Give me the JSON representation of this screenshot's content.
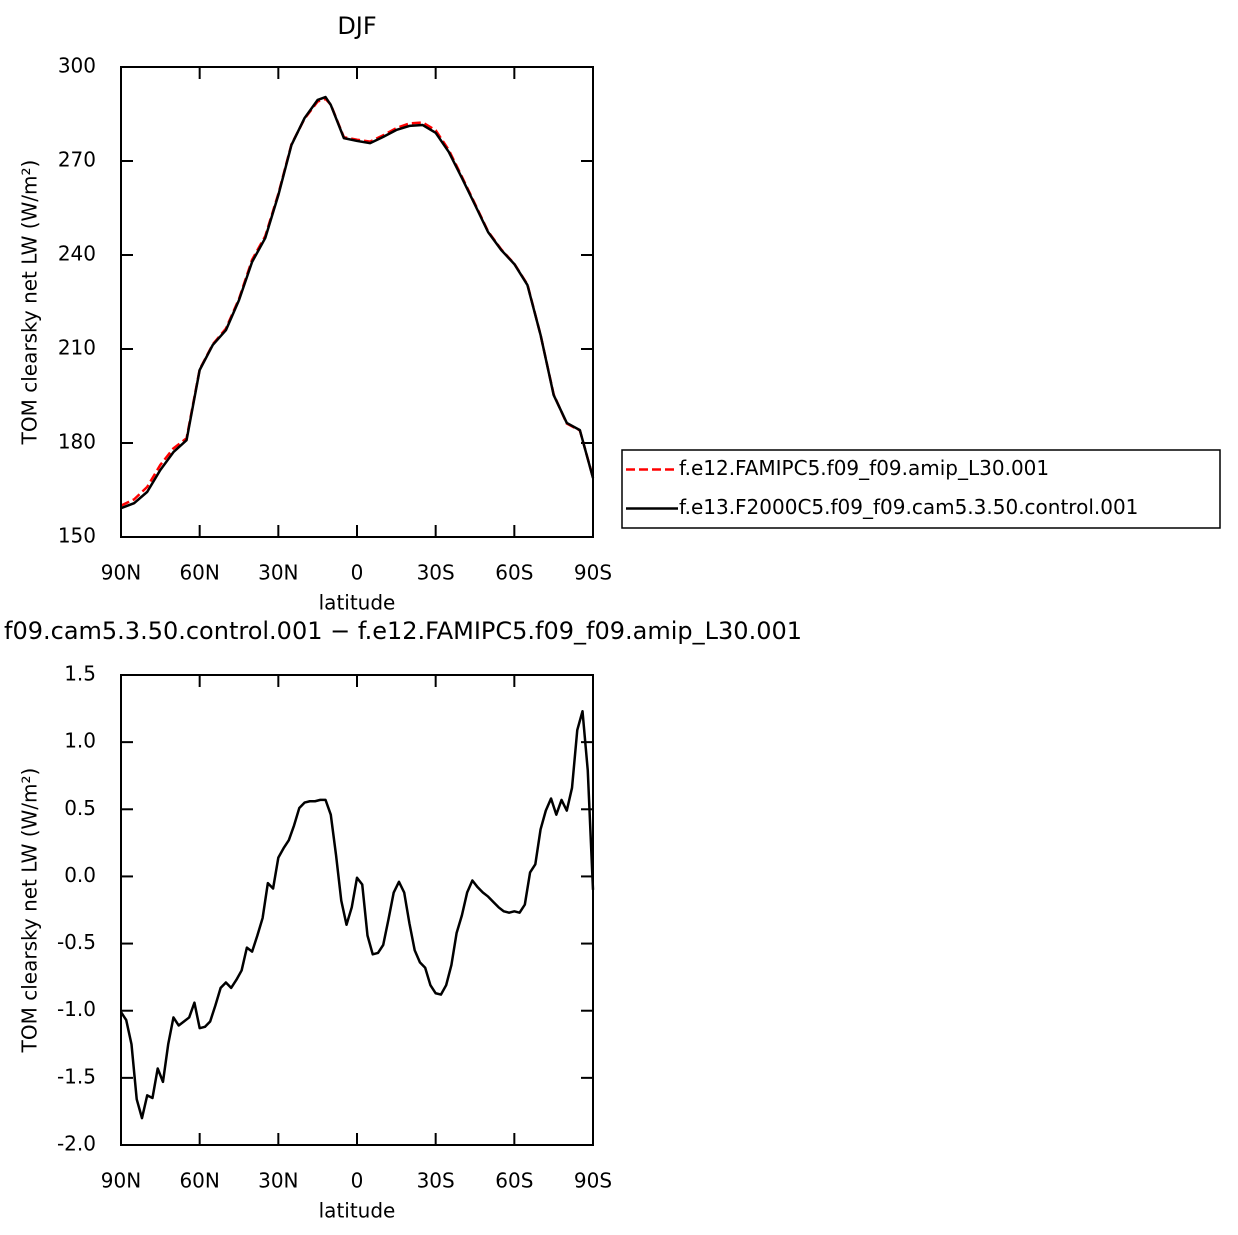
{
  "chart_data": [
    {
      "type": "line",
      "title": "DJF",
      "x_label": "latitude",
      "y_label": "TOM clearsky net LW (W/m²)",
      "x": [
        90,
        85,
        80,
        75,
        70,
        65,
        60,
        55,
        50,
        45,
        40,
        35,
        30,
        25,
        20,
        15,
        12,
        10,
        5,
        0,
        -5,
        -10,
        -15,
        -20,
        -25,
        -30,
        -35,
        -40,
        -45,
        -50,
        -55,
        -60,
        -65,
        -70,
        -75,
        -80,
        -85,
        -90
      ],
      "series": [
        {
          "name": "f.e12.FAMIPC5.f09_f09.amip_L30.001",
          "color": "#ff0000",
          "style": "dashed",
          "values": [
            160,
            162,
            166,
            173,
            178.3,
            181.5,
            203.5,
            211.5,
            216.5,
            226,
            238.5,
            246,
            259.5,
            275.3,
            283.5,
            289,
            289.8,
            288,
            277.6,
            276.8,
            276.2,
            278.2,
            280.5,
            282,
            282.3,
            279.8,
            273.5,
            265,
            256.3,
            247.5,
            241.8,
            237.2,
            230.6,
            214.5,
            195.5,
            186.2,
            184,
            169
          ]
        },
        {
          "name": "f.e13.F2000C5.f09_f09.cam5.3.50.control.001",
          "color": "#000000",
          "style": "solid",
          "values": [
            159.2,
            160.8,
            164.4,
            171.4,
            177.1,
            180.9,
            203.3,
            211.3,
            216,
            225.6,
            237.8,
            245.4,
            259.1,
            275.1,
            283.7,
            289.5,
            290.4,
            287.9,
            277.3,
            276.4,
            275.7,
            277.7,
            279.9,
            281.2,
            281.5,
            279,
            272.9,
            264.6,
            256,
            247.3,
            241.6,
            237.1,
            230.4,
            214.5,
            195.3,
            186.4,
            184.1,
            168.8
          ]
        }
      ],
      "xlim": [
        90,
        -90
      ],
      "xticks": [
        {
          "value": 90,
          "label": "90N"
        },
        {
          "value": 60,
          "label": "60N"
        },
        {
          "value": 30,
          "label": "30N"
        },
        0,
        {
          "value": -30,
          "label": "30S"
        },
        {
          "value": -60,
          "label": "60S"
        },
        {
          "value": -90,
          "label": "90S"
        }
      ],
      "ylim": [
        150,
        300
      ],
      "yticks": [
        150,
        180,
        210,
        240,
        270,
        300
      ],
      "legend": "right"
    },
    {
      "type": "line",
      "title": "f09.cam5.3.50.control.001 − f.e12.FAMIPC5.f09_f09.amip_L30.001",
      "x_label": "latitude",
      "y_label": "TOM clearsky net LW (W/m²)",
      "x": [
        90,
        88,
        86,
        84,
        82,
        80,
        78,
        76,
        74,
        72,
        70,
        68,
        66,
        64,
        62,
        60,
        58,
        56,
        54,
        52,
        50,
        48,
        46,
        44,
        42,
        40,
        38,
        36,
        34,
        32,
        30,
        28,
        26,
        24,
        22,
        20,
        18,
        16,
        14,
        12,
        10,
        8,
        6,
        4,
        2,
        0,
        -2,
        -4,
        -6,
        -8,
        -10,
        -12,
        -14,
        -16,
        -18,
        -20,
        -22,
        -24,
        -26,
        -28,
        -30,
        -32,
        -34,
        -36,
        -38,
        -40,
        -42,
        -44,
        -46,
        -48,
        -50,
        -52,
        -54,
        -56,
        -58,
        -60,
        -62,
        -64,
        -66,
        -68,
        -70,
        -72,
        -74,
        -76,
        -78,
        -80,
        -82,
        -84,
        -86,
        -88,
        -90
      ],
      "series": [
        {
          "color": "#000000",
          "style": "solid",
          "values": [
            -1.01,
            -1.07,
            -1.25,
            -1.66,
            -1.8,
            -1.63,
            -1.65,
            -1.43,
            -1.53,
            -1.25,
            -1.05,
            -1.11,
            -1.08,
            -1.05,
            -0.94,
            -1.13,
            -1.12,
            -1.08,
            -0.96,
            -0.83,
            -0.79,
            -0.83,
            -0.77,
            -0.7,
            -0.53,
            -0.56,
            -0.44,
            -0.31,
            -0.05,
            -0.09,
            0.14,
            0.21,
            0.27,
            0.38,
            0.51,
            0.55,
            0.56,
            0.56,
            0.57,
            0.57,
            0.46,
            0.16,
            -0.18,
            -0.36,
            -0.23,
            -0.01,
            -0.06,
            -0.44,
            -0.58,
            -0.57,
            -0.51,
            -0.32,
            -0.12,
            -0.04,
            -0.12,
            -0.35,
            -0.55,
            -0.64,
            -0.68,
            -0.81,
            -0.87,
            -0.88,
            -0.81,
            -0.66,
            -0.42,
            -0.29,
            -0.12,
            -0.03,
            -0.08,
            -0.12,
            -0.15,
            -0.19,
            -0.23,
            -0.26,
            -0.27,
            -0.26,
            -0.27,
            -0.21,
            0.03,
            0.09,
            0.35,
            0.49,
            0.58,
            0.46,
            0.57,
            0.49,
            0.66,
            1.09,
            1.23,
            0.79,
            -0.1
          ]
        }
      ],
      "xlim": [
        90,
        -90
      ],
      "xticks": [
        {
          "value": 90,
          "label": "90N"
        },
        {
          "value": 60,
          "label": "60N"
        },
        {
          "value": 30,
          "label": "30N"
        },
        0,
        {
          "value": -30,
          "label": "30S"
        },
        {
          "value": -60,
          "label": "60S"
        },
        {
          "value": -90,
          "label": "90S"
        }
      ],
      "ylim": [
        -2.0,
        1.5
      ],
      "yticks": [
        {
          "value": -2.0,
          "label": "-2.0"
        },
        -1.5,
        {
          "value": -1.0,
          "label": "-1.0"
        },
        -0.5,
        {
          "value": 0.0,
          "label": "0.0"
        },
        0.5,
        {
          "value": 1.0,
          "label": "1.0"
        },
        1.5
      ]
    }
  ]
}
